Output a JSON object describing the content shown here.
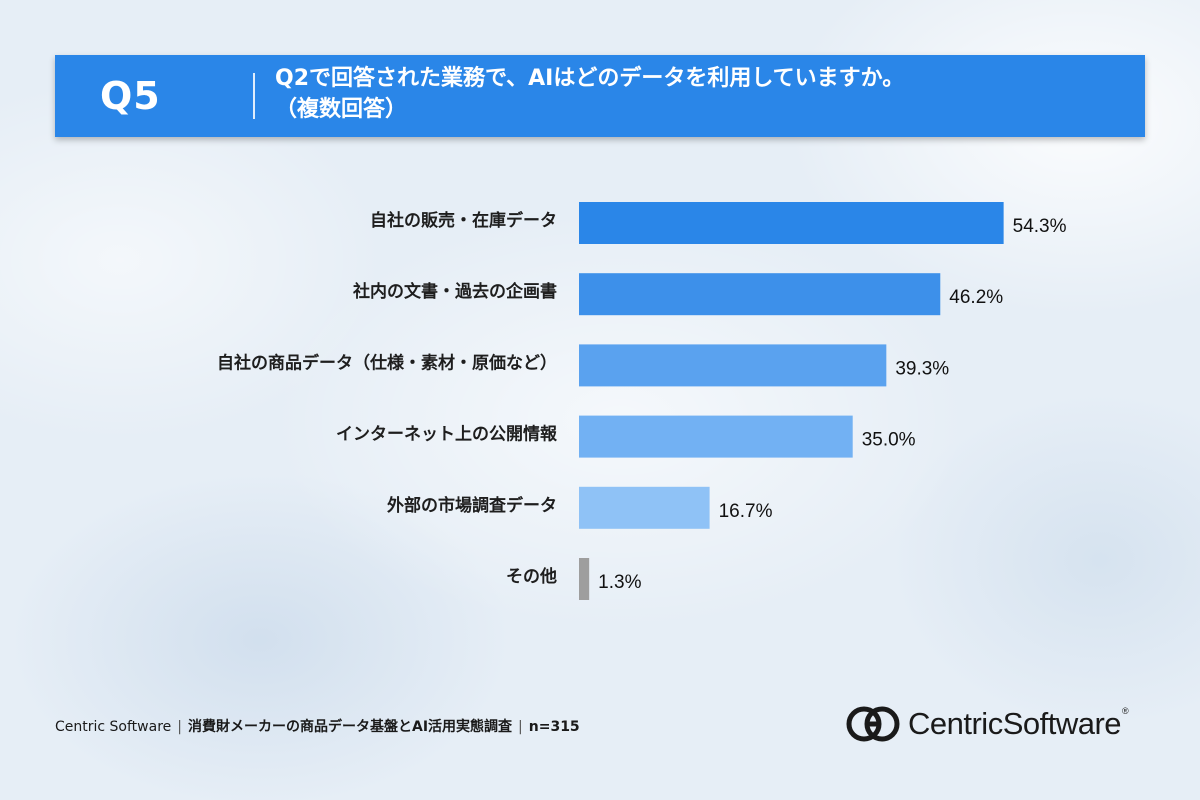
{
  "header": {
    "q_number": "Q5",
    "question_line1": "Q2で回答された業務で、AIはどのデータを利用していますか。",
    "question_line2": "（複数回答）"
  },
  "chart_data": {
    "type": "bar",
    "orientation": "horizontal",
    "categories": [
      "自社の販売・在庫データ",
      "社内の文書・過去の企画書",
      "自社の商品データ（仕様・素材・原価など）",
      "インターネット上の公開情報",
      "外部の市場調査データ",
      "その他"
    ],
    "values": [
      54.3,
      46.2,
      39.3,
      35.0,
      16.7,
      1.3
    ],
    "value_labels": [
      "54.3%",
      "46.2%",
      "39.3%",
      "35.0%",
      "16.7%",
      "1.3%"
    ],
    "unit": "%",
    "xlim": [
      0,
      100
    ],
    "grid": false,
    "colors": [
      "#2a86e8",
      "#3d90ea",
      "#5aa2ef",
      "#72b1f3",
      "#8fc2f6",
      "#9e9e9e"
    ]
  },
  "footer": {
    "source": "Centric Software",
    "survey": "消費財メーカーの商品データ基盤とAI活用実態調査",
    "sample": "n=315"
  },
  "logo": {
    "text_a": "Centric",
    "text_b": "Software",
    "trademark": "®"
  }
}
